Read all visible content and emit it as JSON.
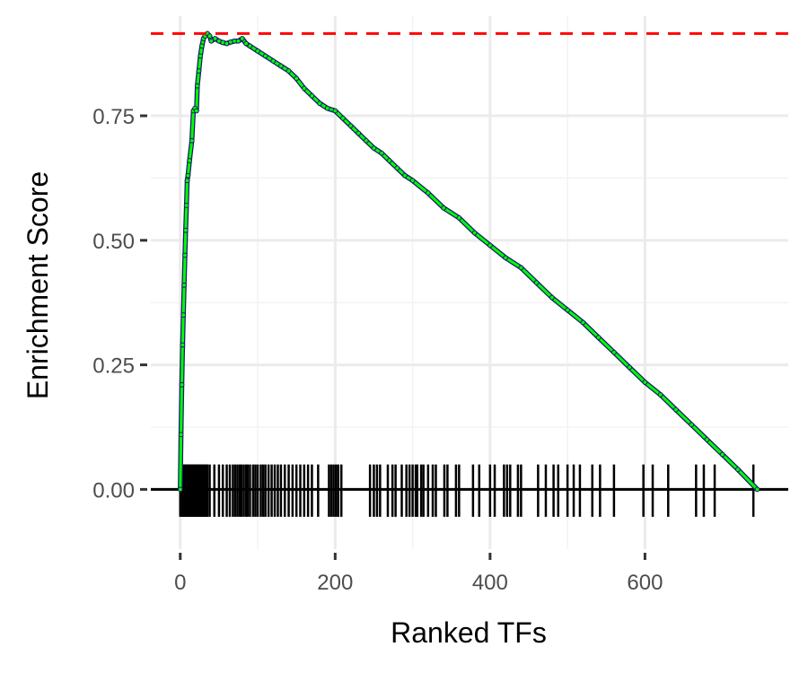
{
  "chart_data": {
    "type": "line",
    "title": "",
    "xlabel": "Ranked TFs",
    "ylabel": "Enrichment Score",
    "xlim": [
      -38,
      785
    ],
    "ylim": [
      -0.12,
      0.95
    ],
    "x_ticks": [
      0,
      200,
      400,
      600
    ],
    "x_tick_labels": [
      "0",
      "200",
      "400",
      "600"
    ],
    "y_ticks": [
      0.0,
      0.25,
      0.5,
      0.75
    ],
    "y_tick_labels": [
      "0.00",
      "0.25",
      "0.50",
      "0.75"
    ],
    "grid": true,
    "legend": "none",
    "max_es_line": {
      "y": 0.915,
      "color": "#ff0000",
      "style": "dashed"
    },
    "zero_line": {
      "y": 0,
      "color": "#000000"
    },
    "series": [
      {
        "color": "#00ff00",
        "x": [
          0,
          1,
          2,
          3,
          4,
          5,
          6,
          7,
          8,
          9,
          10,
          12,
          15,
          17,
          19,
          21,
          22,
          24,
          26,
          28,
          30,
          32,
          35,
          38,
          40,
          45,
          50,
          55,
          60,
          65,
          70,
          75,
          80,
          85,
          90,
          100,
          110,
          120,
          130,
          140,
          150,
          160,
          170,
          180,
          190,
          200,
          210,
          220,
          230,
          240,
          250,
          260,
          270,
          280,
          290,
          300,
          320,
          340,
          360,
          380,
          400,
          420,
          440,
          460,
          480,
          500,
          520,
          540,
          560,
          580,
          600,
          620,
          640,
          660,
          680,
          700,
          720,
          745
        ],
        "y": [
          0.0,
          0.11,
          0.21,
          0.29,
          0.35,
          0.41,
          0.47,
          0.52,
          0.57,
          0.62,
          0.63,
          0.66,
          0.7,
          0.76,
          0.765,
          0.76,
          0.81,
          0.84,
          0.87,
          0.89,
          0.905,
          0.91,
          0.915,
          0.91,
          0.9,
          0.905,
          0.9,
          0.897,
          0.895,
          0.898,
          0.9,
          0.9,
          0.905,
          0.895,
          0.89,
          0.88,
          0.87,
          0.86,
          0.85,
          0.84,
          0.825,
          0.805,
          0.79,
          0.775,
          0.765,
          0.76,
          0.745,
          0.73,
          0.715,
          0.7,
          0.685,
          0.675,
          0.66,
          0.645,
          0.63,
          0.62,
          0.595,
          0.565,
          0.545,
          0.515,
          0.49,
          0.465,
          0.445,
          0.415,
          0.385,
          0.36,
          0.335,
          0.305,
          0.275,
          0.245,
          0.215,
          0.19,
          0.16,
          0.13,
          0.1,
          0.07,
          0.04,
          0.0
        ]
      }
    ],
    "hits": [
      0,
      1,
      2,
      3,
      4,
      5,
      6,
      7,
      8,
      9,
      10,
      11,
      12,
      13,
      14,
      15,
      16,
      17,
      18,
      19,
      20,
      21,
      22,
      23,
      24,
      25,
      26,
      27,
      28,
      29,
      30,
      31,
      32,
      33,
      34,
      35,
      38,
      44,
      50,
      55,
      60,
      64,
      68,
      71,
      74,
      77,
      79,
      82,
      85,
      87,
      90,
      94,
      97,
      100,
      104,
      107,
      110,
      114,
      118,
      122,
      126,
      130,
      135,
      140,
      145,
      150,
      155,
      160,
      165,
      170,
      178,
      192,
      195,
      198,
      201,
      204,
      208,
      245,
      250,
      254,
      258,
      268,
      274,
      278,
      286,
      292,
      296,
      300,
      304,
      306,
      311,
      314,
      320,
      326,
      330,
      341,
      345,
      356,
      360,
      378,
      386,
      400,
      406,
      418,
      422,
      426,
      436,
      440,
      462,
      472,
      482,
      488,
      500,
      508,
      516,
      532,
      542,
      560,
      598,
      610,
      630,
      666,
      676,
      690,
      740
    ]
  }
}
